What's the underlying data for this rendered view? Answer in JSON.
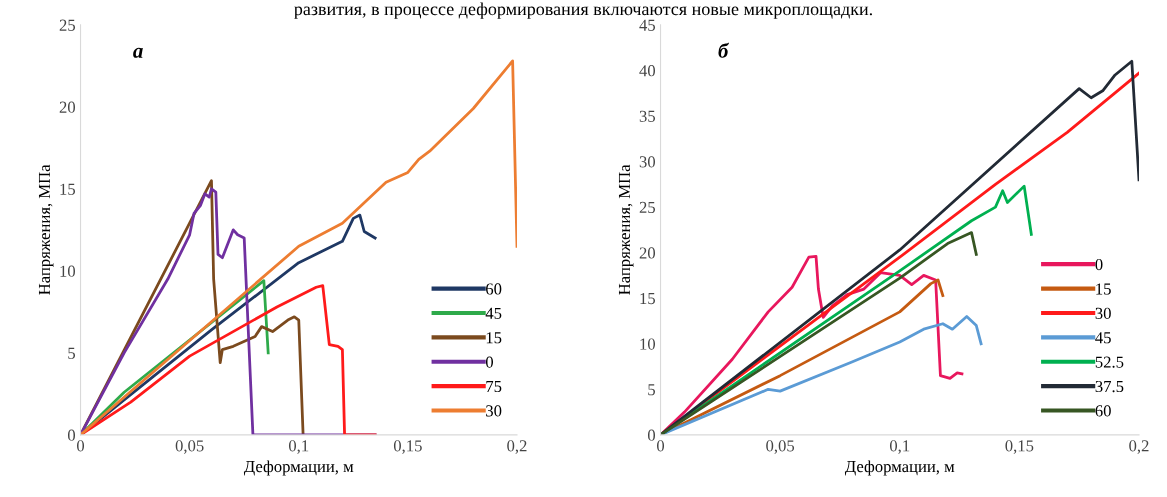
{
  "chart_data": [
    {
      "type": "line",
      "xlabel": "Деформации, м",
      "ylabel": "Напряжения, МПа",
      "annotations": [
        {
          "text": "а"
        },
        {
          "text": "развития, в процессе деформирования включаются новые микроплощадки."
        }
      ],
      "xlim": [
        0,
        0.2
      ],
      "xticks": [
        0,
        {
          "value": 0.05,
          "label": "0,05"
        },
        {
          "value": 0.1,
          "label": "0,1"
        },
        {
          "value": 0.15,
          "label": "0,15"
        },
        {
          "value": 0.2,
          "label": "0,2"
        }
      ],
      "ylim": [
        0,
        25
      ],
      "yticks": [
        0,
        5,
        10,
        15,
        20,
        25
      ],
      "grid": false,
      "legend": "lower right",
      "marker": "none",
      "line_style": "solid",
      "series": [
        {
          "name": "60",
          "color": "#1f3864",
          "x": [
            0,
            0.06,
            0.1,
            0.12,
            0.125,
            0.128,
            0.13,
            0.135
          ],
          "values": [
            0,
            6.4,
            10.5,
            11.8,
            13.2,
            13.4,
            12.4,
            12.0
          ]
        },
        {
          "name": "45",
          "color": "#2eaa4a",
          "x": [
            0,
            0.02,
            0.084,
            0.086
          ],
          "values": [
            0,
            2.6,
            9.4,
            5.0
          ]
        },
        {
          "name": "15",
          "color": "#7b4a1e",
          "x": [
            0,
            0.06,
            0.061,
            0.064,
            0.065,
            0.07,
            0.08,
            0.083,
            0.088,
            0.095,
            0.098,
            0.1,
            0.102
          ],
          "values": [
            0,
            15.5,
            9.5,
            4.4,
            5.2,
            5.4,
            6.0,
            6.6,
            6.3,
            7.0,
            7.2,
            7.0,
            0
          ]
        },
        {
          "name": "0",
          "color": "#7030a0",
          "x": [
            0,
            0.02,
            0.04,
            0.05,
            0.052,
            0.055,
            0.057,
            0.059,
            0.06,
            0.062,
            0.063,
            0.065,
            0.07,
            0.072,
            0.075,
            0.079,
            0.135
          ],
          "values": [
            0,
            5,
            9.5,
            12.2,
            13.5,
            14.0,
            14.7,
            14.5,
            15.0,
            14.8,
            11.0,
            10.8,
            12.5,
            12.2,
            12.0,
            0,
            0
          ]
        },
        {
          "name": "75",
          "color": "#ff1a1a",
          "x": [
            0,
            0.023,
            0.05,
            0.09,
            0.108,
            0.111,
            0.114,
            0.118,
            0.12,
            0.121,
            0.135
          ],
          "values": [
            0,
            2,
            4.8,
            7.8,
            9.0,
            9.1,
            5.5,
            5.4,
            5.2,
            0,
            0
          ]
        },
        {
          "name": "30",
          "color": "#ed7d31",
          "x": [
            0,
            0.1,
            0.12,
            0.14,
            0.15,
            0.155,
            0.16,
            0.18,
            0.198,
            0.2
          ],
          "values": [
            0,
            11.5,
            12.9,
            15.4,
            16.0,
            16.8,
            17.3,
            19.9,
            22.8,
            11.5
          ]
        }
      ]
    },
    {
      "type": "line",
      "xlabel": "Деформации, м",
      "ylabel": "Напряжения, МПа",
      "annotations": [
        {
          "text": "б"
        }
      ],
      "xlim": [
        0,
        0.2
      ],
      "xticks": [
        0,
        {
          "value": 0.05,
          "label": "0,05"
        },
        {
          "value": 0.1,
          "label": "0,1"
        },
        {
          "value": 0.15,
          "label": "0,15"
        },
        {
          "value": 0.2,
          "label": "0,2"
        }
      ],
      "ylim": [
        0,
        45
      ],
      "yticks": [
        0,
        5,
        10,
        15,
        20,
        25,
        30,
        35,
        40,
        45
      ],
      "grid": false,
      "legend": "lower right",
      "marker": "none",
      "line_style": "solid",
      "series": [
        {
          "name": "0",
          "color": "#e8175d",
          "x": [
            0,
            0.01,
            0.03,
            0.045,
            0.055,
            0.062,
            0.065,
            0.066,
            0.068,
            0.072,
            0.078,
            0.085,
            0.092,
            0.1,
            0.105,
            0.11,
            0.115,
            0.117,
            0.121,
            0.124,
            0.126
          ],
          "values": [
            0,
            2.5,
            8.3,
            13.5,
            16.2,
            19.5,
            19.6,
            16,
            12.9,
            14.2,
            15.4,
            16,
            17.8,
            17.5,
            16.5,
            17.5,
            17.0,
            6.5,
            6.2,
            6.8,
            6.7
          ]
        },
        {
          "name": "15",
          "color": "#c55a11",
          "x": [
            0,
            0.05,
            0.1,
            0.113,
            0.116,
            0.118
          ],
          "values": [
            0,
            6.5,
            13.5,
            16.6,
            17.0,
            15.3
          ]
        },
        {
          "name": "30",
          "color": "#ff1a1a",
          "x": [
            0,
            0.1,
            0.14,
            0.17,
            0.2
          ],
          "values": [
            0,
            19.5,
            27.5,
            33.2,
            39.7
          ]
        },
        {
          "name": "45",
          "color": "#5b9bd5",
          "x": [
            0,
            0.045,
            0.05,
            0.08,
            0.1,
            0.11,
            0.118,
            0.122,
            0.128,
            0.132,
            0.134
          ],
          "values": [
            0,
            5.0,
            4.8,
            8.0,
            10.2,
            11.6,
            12.2,
            11.6,
            13.0,
            12.0,
            10.0
          ]
        },
        {
          "name": "52.5",
          "color": "#00b050",
          "x": [
            0,
            0.1,
            0.13,
            0.14,
            0.143,
            0.145,
            0.152,
            0.155
          ],
          "values": [
            0,
            18.0,
            23.5,
            25.0,
            26.8,
            25.5,
            27.3,
            22.0
          ]
        },
        {
          "name": "37.5",
          "color": "#222a35",
          "x": [
            0,
            0.1,
            0.175,
            0.18,
            0.185,
            0.19,
            0.197,
            0.2
          ],
          "values": [
            0,
            20.3,
            38,
            37.0,
            37.8,
            39.5,
            41,
            28
          ]
        },
        {
          "name": "60",
          "color": "#375623",
          "x": [
            0,
            0.1,
            0.12,
            0.13,
            0.132
          ],
          "values": [
            0,
            17.2,
            21.0,
            22.2,
            19.8
          ]
        }
      ]
    }
  ]
}
